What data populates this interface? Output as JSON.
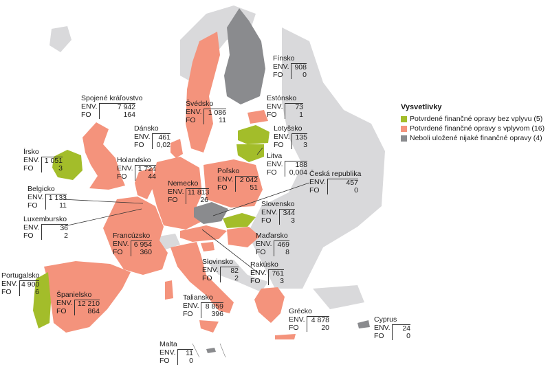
{
  "colors": {
    "no_impact": "#a3bd2a",
    "with_impact": "#f4937c",
    "none": "#8a8b8e",
    "non_eu": "#d9d9db",
    "sea": "#ffffff"
  },
  "legend": {
    "title": "Vysvetlivky",
    "items": [
      {
        "label": "Potvrdené finančné opravy bez vplyvu (5)",
        "color": "#a3bd2a"
      },
      {
        "label": "Potvrdené finančné opravy s vplyvom (16)",
        "color": "#f4937c"
      },
      {
        "label": "Neboli uložené nijaké finančné opravy (4)",
        "color": "#8a8b8e"
      }
    ]
  },
  "row_labels": {
    "env": "ENV.",
    "fo": "FO"
  },
  "countries": [
    {
      "id": "finsko",
      "name": "Fínsko",
      "env": "908",
      "fo": "0"
    },
    {
      "id": "spojene-kralovstvo",
      "name": "Spojené kráľovstvo",
      "env": "7 942",
      "fo": "164"
    },
    {
      "id": "svedsko",
      "name": "Švédsko",
      "env": "1 086",
      "fo": "11"
    },
    {
      "id": "estonsko",
      "name": "Estónsko",
      "env": "73",
      "fo": "1"
    },
    {
      "id": "dansko",
      "name": "Dánsko",
      "env": "461",
      "fo": "0,02"
    },
    {
      "id": "lotyssko",
      "name": "Lotyšsko",
      "env": "135",
      "fo": "3"
    },
    {
      "id": "irsko",
      "name": "Írsko",
      "env": "1 051",
      "fo": "3"
    },
    {
      "id": "holandsko",
      "name": "Holandsko",
      "env": "1 724",
      "fo": "44"
    },
    {
      "id": "litva",
      "name": "Litva",
      "env": "188",
      "fo": "0,004"
    },
    {
      "id": "ceska-republika",
      "name": "Česká republika",
      "env": "457",
      "fo": "0"
    },
    {
      "id": "belgicko",
      "name": "Belgicko",
      "env": "1 133",
      "fo": "11"
    },
    {
      "id": "nemecko",
      "name": "Nemecko",
      "env": "11 813",
      "fo": "26"
    },
    {
      "id": "polsko",
      "name": "Poľsko",
      "env": "2 042",
      "fo": "51"
    },
    {
      "id": "luxembursko",
      "name": "Luxembursko",
      "env": "36",
      "fo": "2"
    },
    {
      "id": "slovensko",
      "name": "Slovensko",
      "env": "344",
      "fo": "3"
    },
    {
      "id": "francuzsko",
      "name": "Francúzsko",
      "env": "6 954",
      "fo": "360"
    },
    {
      "id": "madarsko",
      "name": "Maďarsko",
      "env": "469",
      "fo": "8"
    },
    {
      "id": "slovinsko",
      "name": "Slovinsko",
      "env": "82",
      "fo": "2"
    },
    {
      "id": "rakusko",
      "name": "Rakúsko",
      "env": "761",
      "fo": "3"
    },
    {
      "id": "portugalsko",
      "name": "Portugalsko",
      "env": "4 900",
      "fo": "6"
    },
    {
      "id": "spanielsko",
      "name": "Španielsko",
      "env": "12 210",
      "fo": "864"
    },
    {
      "id": "taliansko",
      "name": "Taliansko",
      "env": "8 859",
      "fo": "396"
    },
    {
      "id": "grecko",
      "name": "Grécko",
      "env": "4 878",
      "fo": "20"
    },
    {
      "id": "cyprus",
      "name": "Cyprus",
      "env": "24",
      "fo": "0"
    },
    {
      "id": "malta",
      "name": "Malta",
      "env": "11",
      "fo": "0"
    }
  ]
}
